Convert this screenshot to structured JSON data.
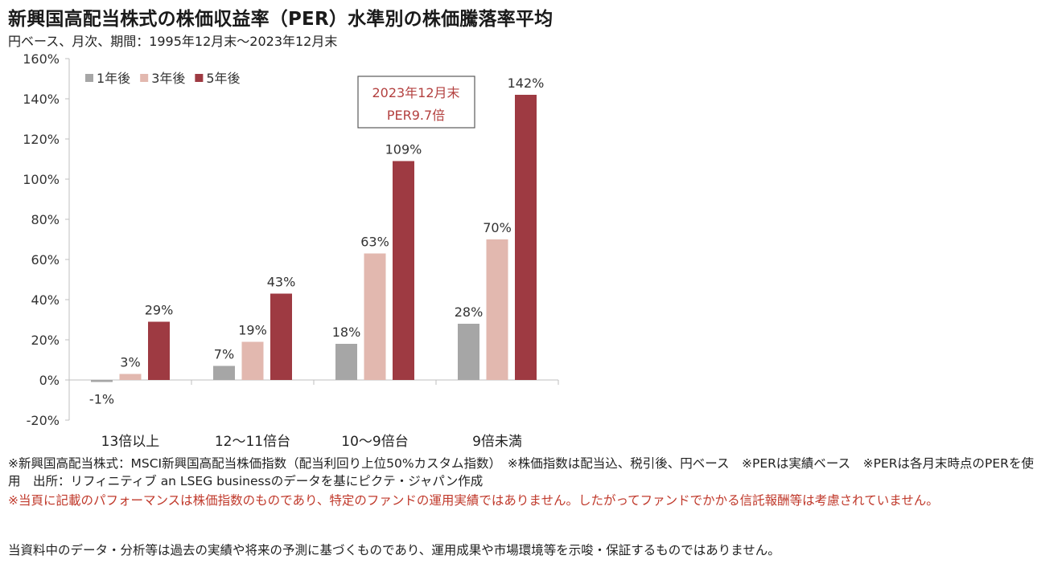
{
  "title": "新興国高配当株式の株価収益率（PER）水準別の株価騰落率平均",
  "subtitle": "円ベース、月次、期間：1995年12月末～2023年12月末",
  "colors": {
    "series_1y": "#a6a6a6",
    "series_3y": "#e2b8af",
    "series_5y": "#9e3a42",
    "callout_text": "#b3403f"
  },
  "callout": {
    "line1": "2023年12月末",
    "line2": "PER9.7倍"
  },
  "chart_data": {
    "type": "bar",
    "categories": [
      "13倍以上",
      "12～11倍台",
      "10～9倍台",
      "9倍未満"
    ],
    "series": [
      {
        "name": "1年後",
        "values": [
          -1,
          7,
          18,
          28
        ],
        "labels": [
          "-1%",
          "7%",
          "18%",
          "28%"
        ]
      },
      {
        "name": "3年後",
        "values": [
          3,
          19,
          63,
          70
        ],
        "labels": [
          "3%",
          "19%",
          "63%",
          "70%"
        ]
      },
      {
        "name": "5年後",
        "values": [
          29,
          43,
          109,
          142
        ],
        "labels": [
          "29%",
          "43%",
          "109%",
          "142%"
        ]
      }
    ],
    "ylim": [
      -20,
      160
    ],
    "yticks": [
      -20,
      0,
      20,
      40,
      60,
      80,
      100,
      120,
      140,
      160
    ],
    "ytick_labels": [
      "-20%",
      "0%",
      "20%",
      "40%",
      "60%",
      "80%",
      "100%",
      "120%",
      "140%",
      "160%"
    ],
    "legend_position": "top-left",
    "grid": false
  },
  "notes": {
    "line1": "※新興国高配当株式：MSCI新興国高配当株価指数（配当利回り上位50%カスタム指数）　※株価指数は配当込、税引後、円ベース　※PERは実績ベース　※PERは各月末時点のPERを使用　出所：リフィニティブ an LSEG businessのデータを基にピクテ・ジャパン作成",
    "line2": "※当頁に記載のパフォーマンスは株価指数のものであり、特定のファンドの運用実績ではありません。したがってファンドでかかる信託報酬等は考慮されていません。",
    "line3": "当資料中のデータ・分析等は過去の実績や将来の予測に基づくものであり、運用成果や市場環境等を示唆・保証するものではありません。"
  }
}
